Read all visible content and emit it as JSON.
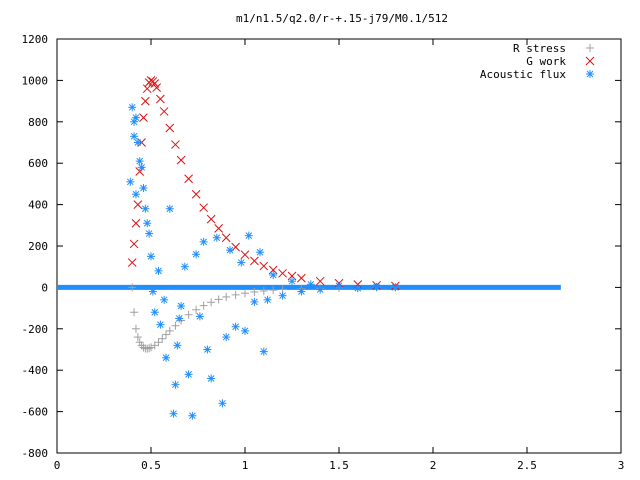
{
  "chart_data": {
    "type": "scatter",
    "title": "m1/n1.5/q2.0/r-+.15-j79/M0.1/512",
    "xlabel": "",
    "ylabel": "",
    "xlim": [
      0,
      3
    ],
    "ylim": [
      -800,
      1200
    ],
    "x_ticks": [
      "0",
      "0.5",
      "1",
      "1.5",
      "2",
      "2.5",
      "3"
    ],
    "y_ticks": [
      "-800",
      "-600",
      "-400",
      "-200",
      "0",
      "200",
      "400",
      "600",
      "800",
      "1000",
      "1200"
    ],
    "legend_position": "top-right",
    "grid": false,
    "series": [
      {
        "name": "R stress",
        "marker": "+",
        "color": "#a0a0a0",
        "x": [
          0.4,
          0.41,
          0.42,
          0.43,
          0.44,
          0.45,
          0.46,
          0.47,
          0.48,
          0.49,
          0.5,
          0.52,
          0.54,
          0.56,
          0.58,
          0.6,
          0.63,
          0.66,
          0.7,
          0.74,
          0.78,
          0.82,
          0.86,
          0.9,
          0.95,
          1.0,
          1.05,
          1.1,
          1.15,
          1.2,
          1.3,
          1.4,
          1.5,
          1.6,
          1.7,
          1.8
        ],
        "y": [
          0,
          -120,
          -200,
          -240,
          -265,
          -280,
          -290,
          -295,
          -296,
          -294,
          -290,
          -280,
          -265,
          -248,
          -228,
          -210,
          -185,
          -160,
          -132,
          -108,
          -88,
          -72,
          -58,
          -46,
          -36,
          -28,
          -22,
          -17,
          -13,
          -10,
          -6,
          -4,
          -2,
          -1,
          0,
          0
        ]
      },
      {
        "name": "G work",
        "marker": "x",
        "color": "#e01010",
        "x": [
          0.4,
          0.41,
          0.42,
          0.43,
          0.44,
          0.45,
          0.46,
          0.47,
          0.48,
          0.49,
          0.5,
          0.51,
          0.52,
          0.53,
          0.55,
          0.57,
          0.6,
          0.63,
          0.66,
          0.7,
          0.74,
          0.78,
          0.82,
          0.86,
          0.9,
          0.95,
          1.0,
          1.05,
          1.1,
          1.15,
          1.2,
          1.25,
          1.3,
          1.4,
          1.5,
          1.6,
          1.7,
          1.8
        ],
        "y": [
          120,
          210,
          310,
          400,
          560,
          700,
          820,
          900,
          960,
          990,
          1000,
          995,
          985,
          965,
          910,
          850,
          770,
          690,
          615,
          525,
          450,
          385,
          330,
          285,
          240,
          195,
          158,
          128,
          103,
          84,
          68,
          55,
          45,
          30,
          20,
          14,
          10,
          7
        ]
      },
      {
        "name": "Acoustic flux",
        "marker": "*",
        "color": "#1f8fff",
        "x": [
          0.39,
          0.4,
          0.41,
          0.41,
          0.42,
          0.42,
          0.43,
          0.44,
          0.45,
          0.46,
          0.47,
          0.48,
          0.49,
          0.5,
          0.51,
          0.52,
          0.54,
          0.55,
          0.57,
          0.58,
          0.6,
          0.62,
          0.63,
          0.64,
          0.65,
          0.66,
          0.68,
          0.7,
          0.72,
          0.74,
          0.76,
          0.78,
          0.8,
          0.82,
          0.85,
          0.88,
          0.9,
          0.92,
          0.95,
          0.98,
          1.0,
          1.02,
          1.05,
          1.08,
          1.1,
          1.12,
          1.15,
          1.2,
          1.25,
          1.3,
          1.35,
          1.4,
          1.5,
          1.6,
          1.7,
          1.8
        ],
        "y": [
          510,
          870,
          800,
          730,
          450,
          820,
          700,
          610,
          580,
          480,
          380,
          310,
          260,
          150,
          -20,
          -120,
          80,
          -180,
          -60,
          -340,
          380,
          -610,
          -470,
          -280,
          -150,
          -90,
          100,
          -420,
          -620,
          160,
          -140,
          220,
          -300,
          -440,
          240,
          -560,
          -240,
          180,
          -190,
          120,
          -210,
          250,
          -70,
          170,
          -310,
          -60,
          60,
          -40,
          30,
          -20,
          15,
          -10,
          8,
          -4,
          2,
          0
        ]
      }
    ]
  }
}
